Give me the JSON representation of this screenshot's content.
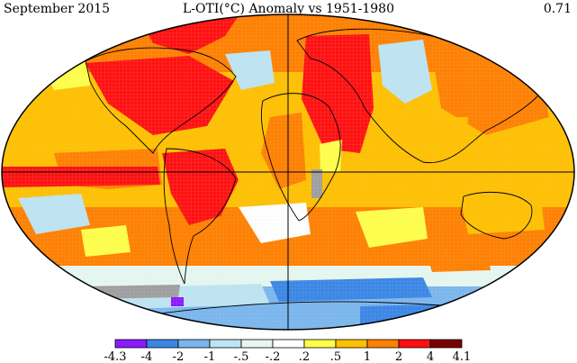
{
  "header": {
    "date": "September 2015",
    "title": "L-OTI(°C) Anomaly vs 1951-1980",
    "global_mean": "0.71"
  },
  "legend": {
    "labels": [
      "-4.3",
      "-4",
      "-2",
      "-1",
      "-.5",
      "-.2",
      ".2",
      ".5",
      "1",
      "2",
      "4",
      "4.1"
    ],
    "colors": [
      "#8b1aff",
      "#3a86e6",
      "#7ab6ee",
      "#bde4f2",
      "#e6f7f0",
      "#ffffff",
      "#ffff4a",
      "#ffc000",
      "#ff8000",
      "#ff1010",
      "#7a0000"
    ],
    "no_data_color": "#9e9e9e"
  }
}
